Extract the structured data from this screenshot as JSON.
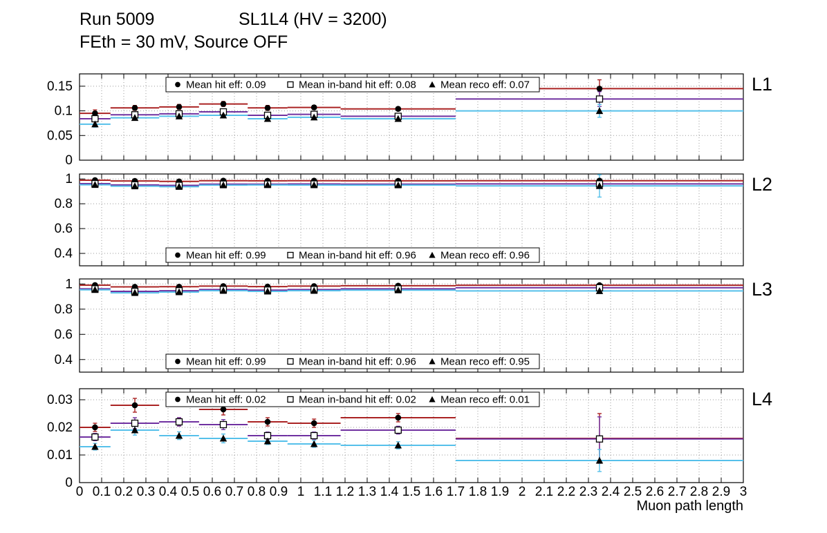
{
  "header": {
    "run": "Run 5009",
    "config": "SL1L4 (HV = 3200)",
    "subtitle": "FEth = 30 mV, Source OFF"
  },
  "chart_data": {
    "type": "scatter",
    "title": "Run 5009  SL1L4 (HV = 3200)",
    "subtitle": "FEth = 30 mV, Source OFF",
    "xlabel": "Muon path length",
    "xlim": [
      0,
      3
    ],
    "grid": "dotted",
    "xticks": [
      0,
      0.1,
      0.2,
      0.3,
      0.4,
      0.5,
      0.6,
      0.7,
      0.8,
      0.9,
      1,
      1.1,
      1.2,
      1.3,
      1.4,
      1.5,
      1.6,
      1.7,
      1.8,
      1.9,
      2,
      2.1,
      2.2,
      2.3,
      2.4,
      2.5,
      2.6,
      2.7,
      2.8,
      2.9,
      3
    ],
    "xtick_labels": [
      "0",
      "0.1",
      "0.2",
      "0.3",
      "0.4",
      "0.5",
      "0.6",
      "0.7",
      "0.8",
      "0.9",
      "1",
      "1.1",
      "1.2",
      "1.3",
      "1.4",
      "1.5",
      "1.6",
      "1.7",
      "1.8",
      "1.9",
      "2",
      "2.1",
      "2.2",
      "2.3",
      "2.4",
      "2.5",
      "2.6",
      "2.7",
      "2.8",
      "2.9",
      "3"
    ],
    "bin_centers": [
      0.07,
      0.25,
      0.45,
      0.65,
      0.85,
      1.06,
      1.44,
      2.35
    ],
    "bin_halfwidths": [
      0.07,
      0.11,
      0.09,
      0.11,
      0.09,
      0.12,
      0.26,
      0.65
    ],
    "series_meta": [
      {
        "key": "hit",
        "marker": "circle",
        "color": "#aa2222",
        "label": "Mean hit  eff"
      },
      {
        "key": "inband",
        "marker": "square",
        "color": "#6f30a0",
        "label": "Mean in-band hit eff"
      },
      {
        "key": "reco",
        "marker": "triangle",
        "color": "#55c0ea",
        "label": "Mean reco eff"
      }
    ],
    "panels": [
      {
        "label": "L1",
        "ylim": [
          0,
          0.175
        ],
        "yticks": [
          0,
          0.05,
          0.1,
          0.15
        ],
        "ytick_labels": [
          "0",
          "0.05",
          "0.1",
          "0.15"
        ],
        "legend_position": "top",
        "legend_entries": [
          "Mean hit  eff: 0.09",
          "Mean in-band hit eff: 0.08",
          "Mean reco eff: 0.07"
        ],
        "series": [
          {
            "values": [
              0.095,
              0.106,
              0.108,
              0.114,
              0.106,
              0.107,
              0.104,
              0.145
            ],
            "yerr": [
              0.007,
              0.005,
              0.005,
              0.005,
              0.005,
              0.004,
              0.003,
              0.018
            ]
          },
          {
            "values": [
              0.084,
              0.092,
              0.094,
              0.098,
              0.091,
              0.093,
              0.089,
              0.124
            ],
            "yerr": [
              0.006,
              0.004,
              0.004,
              0.004,
              0.004,
              0.004,
              0.003,
              0.015
            ]
          },
          {
            "values": [
              0.073,
              0.086,
              0.089,
              0.091,
              0.084,
              0.087,
              0.084,
              0.1
            ],
            "yerr": [
              0.006,
              0.004,
              0.004,
              0.004,
              0.004,
              0.004,
              0.003,
              0.013
            ]
          }
        ]
      },
      {
        "label": "L2",
        "ylim": [
          0.3,
          1.04
        ],
        "yticks": [
          0.4,
          0.6,
          0.8,
          1
        ],
        "ytick_labels": [
          "0.4",
          "0.6",
          "0.8",
          "1"
        ],
        "legend_position": "bottom",
        "legend_entries": [
          "Mean hit  eff: 0.99",
          "Mean in-band hit eff: 0.96",
          "Mean reco eff: 0.96"
        ],
        "series": [
          {
            "values": [
              0.99,
              0.984,
              0.98,
              0.986,
              0.985,
              0.986,
              0.985,
              0.986
            ],
            "yerr": [
              0.004,
              0.004,
              0.004,
              0.004,
              0.004,
              0.003,
              0.003,
              0.005
            ]
          },
          {
            "values": [
              0.962,
              0.952,
              0.948,
              0.958,
              0.958,
              0.959,
              0.958,
              0.96
            ],
            "yerr": [
              0.006,
              0.005,
              0.005,
              0.005,
              0.005,
              0.004,
              0.004,
              0.012
            ]
          },
          {
            "values": [
              0.953,
              0.942,
              0.938,
              0.95,
              0.952,
              0.951,
              0.95,
              0.944
            ],
            "yerr": [
              0.007,
              0.006,
              0.006,
              0.006,
              0.006,
              0.005,
              0.005,
              0.09
            ]
          }
        ]
      },
      {
        "label": "L3",
        "ylim": [
          0.3,
          1.04
        ],
        "yticks": [
          0.4,
          0.6,
          0.8,
          1
        ],
        "ytick_labels": [
          "0.4",
          "0.6",
          "0.8",
          "1"
        ],
        "legend_position": "bottom",
        "legend_entries": [
          "Mean hit  eff: 0.99",
          "Mean in-band hit eff: 0.96",
          "Mean reco eff: 0.95"
        ],
        "series": [
          {
            "values": [
              0.991,
              0.977,
              0.978,
              0.983,
              0.979,
              0.983,
              0.986,
              0.99
            ],
            "yerr": [
              0.004,
              0.004,
              0.004,
              0.004,
              0.004,
              0.003,
              0.003,
              0.005
            ]
          },
          {
            "values": [
              0.961,
              0.941,
              0.946,
              0.956,
              0.951,
              0.956,
              0.961,
              0.97
            ],
            "yerr": [
              0.006,
              0.005,
              0.005,
              0.005,
              0.005,
              0.004,
              0.004,
              0.01
            ]
          },
          {
            "values": [
              0.954,
              0.93,
              0.936,
              0.947,
              0.941,
              0.947,
              0.951,
              0.945
            ],
            "yerr": [
              0.007,
              0.006,
              0.006,
              0.006,
              0.006,
              0.005,
              0.005,
              0.02
            ]
          }
        ]
      },
      {
        "label": "L4",
        "ylim": [
          0,
          0.034
        ],
        "yticks": [
          0,
          0.01,
          0.02,
          0.03
        ],
        "ytick_labels": [
          "0",
          "0.01",
          "0.02",
          "0.03"
        ],
        "legend_position": "top",
        "legend_entries": [
          "Mean hit  eff: 0.02",
          "Mean in-band hit eff: 0.02",
          "Mean reco eff: 0.01"
        ],
        "series": [
          {
            "values": [
              0.02,
              0.028,
              0.022,
              0.0265,
              0.022,
              0.0215,
              0.0235,
              0.016
            ],
            "yerr": [
              0.0015,
              0.0025,
              0.0015,
              0.002,
              0.0015,
              0.0015,
              0.0015,
              0.009
            ]
          },
          {
            "values": [
              0.0165,
              0.0215,
              0.022,
              0.021,
              0.017,
              0.017,
              0.019,
              0.0158
            ],
            "yerr": [
              0.0013,
              0.002,
              0.0015,
              0.0018,
              0.0013,
              0.0013,
              0.0014,
              0.008
            ]
          },
          {
            "values": [
              0.013,
              0.019,
              0.017,
              0.016,
              0.015,
              0.014,
              0.0135,
              0.008
            ],
            "yerr": [
              0.0012,
              0.0018,
              0.0014,
              0.0016,
              0.0012,
              0.0012,
              0.0013,
              0.004
            ]
          }
        ]
      }
    ]
  }
}
